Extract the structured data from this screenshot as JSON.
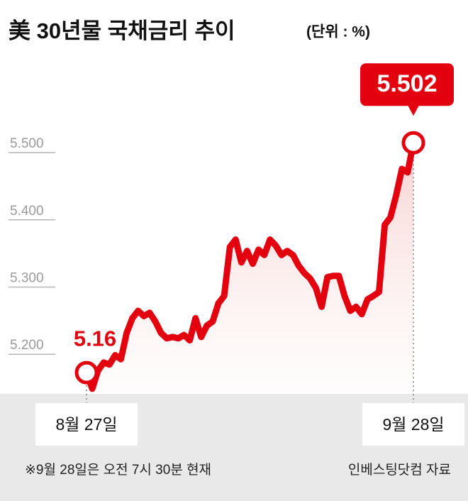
{
  "chart_data": {
    "type": "line",
    "title": "美 30년물 국채금리 추이",
    "subtitle": "(단위 : %)",
    "categories": [
      "8월 27일",
      null,
      null,
      null,
      null,
      null,
      null,
      null,
      null,
      null,
      null,
      null,
      null,
      null,
      null,
      null,
      null,
      null,
      null,
      null,
      null,
      null,
      null,
      null,
      null,
      null,
      null,
      null,
      null,
      null,
      null,
      null,
      null,
      null,
      null,
      null,
      null,
      null,
      null,
      null,
      null,
      null,
      null,
      null,
      null,
      null,
      null,
      null,
      null,
      null,
      null,
      null,
      null,
      null,
      null,
      null,
      null,
      "9월 28일"
    ],
    "values": [
      5.16,
      5.136,
      5.163,
      5.175,
      5.172,
      5.186,
      5.18,
      5.219,
      5.241,
      5.252,
      5.244,
      5.249,
      5.236,
      5.219,
      5.211,
      5.213,
      5.211,
      5.216,
      5.208,
      5.241,
      5.213,
      5.23,
      5.236,
      5.263,
      5.274,
      5.347,
      5.358,
      5.324,
      5.341,
      5.322,
      5.343,
      5.335,
      5.358,
      5.349,
      5.335,
      5.341,
      5.335,
      5.319,
      5.308,
      5.3,
      5.286,
      5.258,
      5.302,
      5.304,
      5.304,
      5.274,
      5.252,
      5.258,
      5.247,
      5.269,
      5.274,
      5.28,
      5.38,
      5.391,
      5.424,
      5.463,
      5.458,
      5.502
    ],
    "color": "#e3000f",
    "ylim": [
      5.13,
      5.63
    ],
    "yticks": [
      {
        "value": 5.2,
        "label": "5.200"
      },
      {
        "value": 5.3,
        "label": "5.300"
      },
      {
        "value": 5.4,
        "label": "5.400"
      },
      {
        "value": 5.5,
        "label": "5.500"
      }
    ],
    "note": "※9월 28일은 오전 7시 30분 현재",
    "source": "인베스팅닷컴 자료"
  }
}
